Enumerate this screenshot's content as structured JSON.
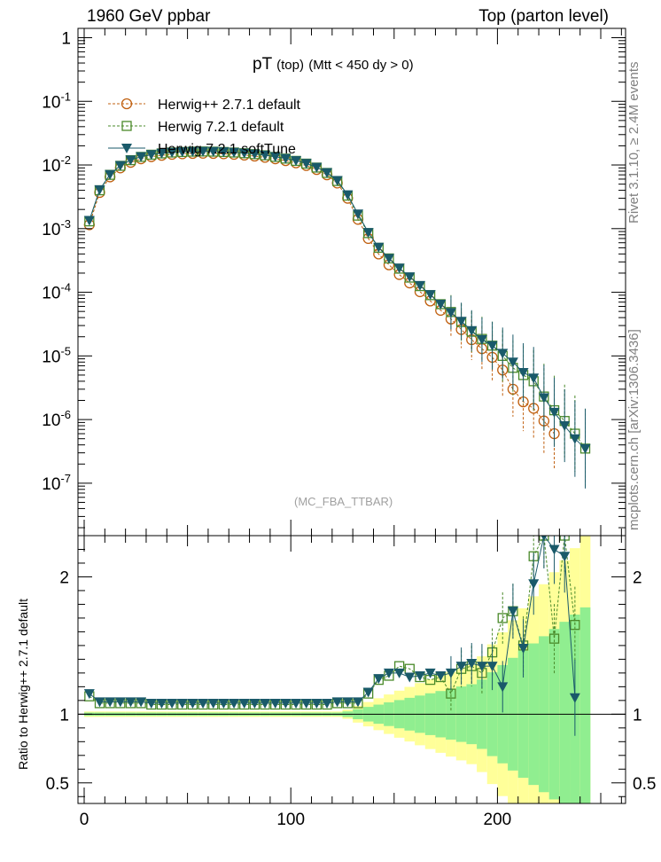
{
  "header": {
    "left": "1960 GeV ppbar",
    "right": "Top (parton level)"
  },
  "plot_title": {
    "main": "pT",
    "sub": "(top)",
    "cut": "(Mtt < 450 dy > 0)"
  },
  "watermark": "(MC_FBA_TTBAR)",
  "side_labels": {
    "rivet": "Rivet 3.1.10, ≥ 2.4M events",
    "mcplots": "mcplots.cern.ch [arXiv:1306.3436]"
  },
  "ratio_ylabel": "Ratio to Herwig++ 2.7.1 default",
  "colors": {
    "herwigpp": "#c06010",
    "herwig721": "#4a8a2a",
    "softtune": "#1a5a6a",
    "band_yellow": "#ffff99",
    "band_green": "#90ee90"
  },
  "chart_data": [
    {
      "type": "scatter",
      "title": "pT (top) (Mtt < 450 dy > 0)",
      "xlabel": "",
      "ylabel": "",
      "log_y": true,
      "xlim": [
        -3,
        262
      ],
      "ylim": [
        1.5e-08,
        1.4
      ],
      "y_tick_labels": [
        "1",
        "10^-1",
        "10^-2",
        "10^-3",
        "10^-4",
        "10^-5",
        "10^-6",
        "10^-7"
      ],
      "legend_position": "top-left",
      "x": [
        2.5,
        7.5,
        12.5,
        17.5,
        22.5,
        27.5,
        32.5,
        37.5,
        42.5,
        47.5,
        52.5,
        57.5,
        62.5,
        67.5,
        72.5,
        77.5,
        82.5,
        87.5,
        92.5,
        97.5,
        102.5,
        107.5,
        112.5,
        117.5,
        122.5,
        127.5,
        132.5,
        137.5,
        142.5,
        147.5,
        152.5,
        157.5,
        162.5,
        167.5,
        172.5,
        177.5,
        182.5,
        187.5,
        192.5,
        197.5,
        202.5,
        207.5,
        212.5,
        217.5,
        222.5,
        227.5,
        232.5,
        237.5,
        242.5,
        247.5,
        252.5,
        257.5
      ],
      "series": [
        {
          "name": "Herwig++ 2.7.1 default",
          "marker": "open-circle",
          "line": "dashed",
          "values": [
            0.00115,
            0.0037,
            0.0065,
            0.009,
            0.011,
            0.0125,
            0.0135,
            0.0142,
            0.0147,
            0.015,
            0.0152,
            0.0153,
            0.0152,
            0.015,
            0.0147,
            0.0143,
            0.0138,
            0.0132,
            0.0125,
            0.0117,
            0.0108,
            0.0098,
            0.0085,
            0.007,
            0.0052,
            0.003,
            0.0014,
            0.0007,
            0.0004,
            0.00027,
            0.00019,
            0.00014,
            0.000102,
            7.3e-05,
            5.2e-05,
            3.8e-05,
            2.6e-05,
            1.8e-05,
            1.3e-05,
            9.5e-06,
            6e-06,
            3e-06,
            1.9e-06,
            1.5e-06,
            9.5e-07,
            6e-07,
            null,
            null,
            null,
            null,
            null,
            null
          ]
        },
        {
          "name": "Herwig 7.2.1 default",
          "marker": "open-square",
          "line": "dashed",
          "values": [
            0.0013,
            0.004,
            0.007,
            0.0097,
            0.0119,
            0.0134,
            0.0145,
            0.0152,
            0.0157,
            0.016,
            0.0162,
            0.0163,
            0.0162,
            0.016,
            0.0157,
            0.0153,
            0.0148,
            0.0142,
            0.0134,
            0.0126,
            0.0116,
            0.0105,
            0.0091,
            0.0075,
            0.0056,
            0.0033,
            0.0016,
            0.00085,
            0.0005,
            0.00034,
            0.000235,
            0.00017,
            0.000125,
            9e-05,
            6.5e-05,
            4.9e-05,
            3.4e-05,
            2.4e-05,
            1.85e-05,
            1.45e-05,
            1e-05,
            6.5e-06,
            5e-06,
            4e-06,
            2.3e-06,
            1.4e-06,
            9.5e-07,
            6e-07,
            3.5e-07,
            null,
            null,
            null
          ]
        },
        {
          "name": "Herwig 7.2.1 softTune",
          "marker": "filled-triangle-down",
          "line": "solid",
          "values": [
            0.00135,
            0.0041,
            0.0071,
            0.0098,
            0.012,
            0.0135,
            0.0146,
            0.0153,
            0.0158,
            0.0161,
            0.0163,
            0.0164,
            0.0163,
            0.0161,
            0.0158,
            0.0154,
            0.0149,
            0.0143,
            0.0135,
            0.0127,
            0.0117,
            0.0106,
            0.0092,
            0.0076,
            0.0057,
            0.0034,
            0.0017,
            0.00087,
            0.00051,
            0.00034,
            0.00024,
            0.000175,
            0.000128,
            9.2e-05,
            6.5e-05,
            4.8e-05,
            3.5e-05,
            2.5e-05,
            1.8e-05,
            1.45e-05,
            1.1e-05,
            8e-06,
            5.5e-06,
            4.5e-06,
            2.2e-06,
            1.3e-06,
            8e-07,
            5e-07,
            3.5e-07,
            null,
            null,
            null
          ]
        }
      ]
    },
    {
      "type": "scatter",
      "title": "",
      "xlabel": "",
      "ylabel": "Ratio to Herwig++ 2.7.1 default",
      "xlim": [
        -3,
        262
      ],
      "ylim": [
        0.35,
        2.3
      ],
      "x_tick_labels": [
        "0",
        "100",
        "200"
      ],
      "y_tick_labels": [
        "0.5",
        "1",
        "2"
      ],
      "reference_line": 1,
      "x": [
        2.5,
        7.5,
        12.5,
        17.5,
        22.5,
        27.5,
        32.5,
        37.5,
        42.5,
        47.5,
        52.5,
        57.5,
        62.5,
        67.5,
        72.5,
        77.5,
        82.5,
        87.5,
        92.5,
        97.5,
        102.5,
        107.5,
        112.5,
        117.5,
        122.5,
        127.5,
        132.5,
        137.5,
        142.5,
        147.5,
        152.5,
        157.5,
        162.5,
        167.5,
        172.5,
        177.5,
        182.5,
        187.5,
        192.5,
        197.5,
        202.5,
        207.5,
        212.5,
        217.5,
        222.5,
        227.5,
        232.5,
        237.5,
        242.5
      ],
      "series": [
        {
          "name": "Herwig 7.2.1 default",
          "marker": "open-square",
          "line": "dashed",
          "values": [
            1.13,
            1.08,
            1.08,
            1.08,
            1.08,
            1.08,
            1.07,
            1.07,
            1.07,
            1.07,
            1.07,
            1.07,
            1.07,
            1.07,
            1.07,
            1.07,
            1.07,
            1.07,
            1.07,
            1.07,
            1.07,
            1.07,
            1.07,
            1.07,
            1.08,
            1.08,
            1.08,
            1.15,
            1.25,
            1.28,
            1.35,
            1.33,
            1.27,
            1.25,
            1.27,
            1.15,
            1.33,
            1.35,
            1.3,
            1.45,
            1.7,
            1.75,
            1.5,
            2.15,
            2.3,
            1.55,
            2.3,
            1.65,
            null
          ]
        },
        {
          "name": "Herwig 7.2.1 softTune",
          "marker": "filled-triangle-down",
          "line": "solid",
          "values": [
            1.15,
            1.09,
            1.09,
            1.09,
            1.09,
            1.09,
            1.08,
            1.08,
            1.08,
            1.08,
            1.08,
            1.08,
            1.08,
            1.08,
            1.08,
            1.08,
            1.08,
            1.08,
            1.08,
            1.08,
            1.08,
            1.08,
            1.08,
            1.08,
            1.09,
            1.09,
            1.09,
            1.16,
            1.26,
            1.3,
            1.3,
            1.27,
            1.28,
            1.3,
            1.28,
            1.3,
            1.35,
            1.37,
            1.35,
            1.35,
            1.2,
            1.75,
            1.48,
            1.95,
            2.3,
            2.2,
            2.15,
            1.12,
            null
          ]
        }
      ]
    }
  ]
}
